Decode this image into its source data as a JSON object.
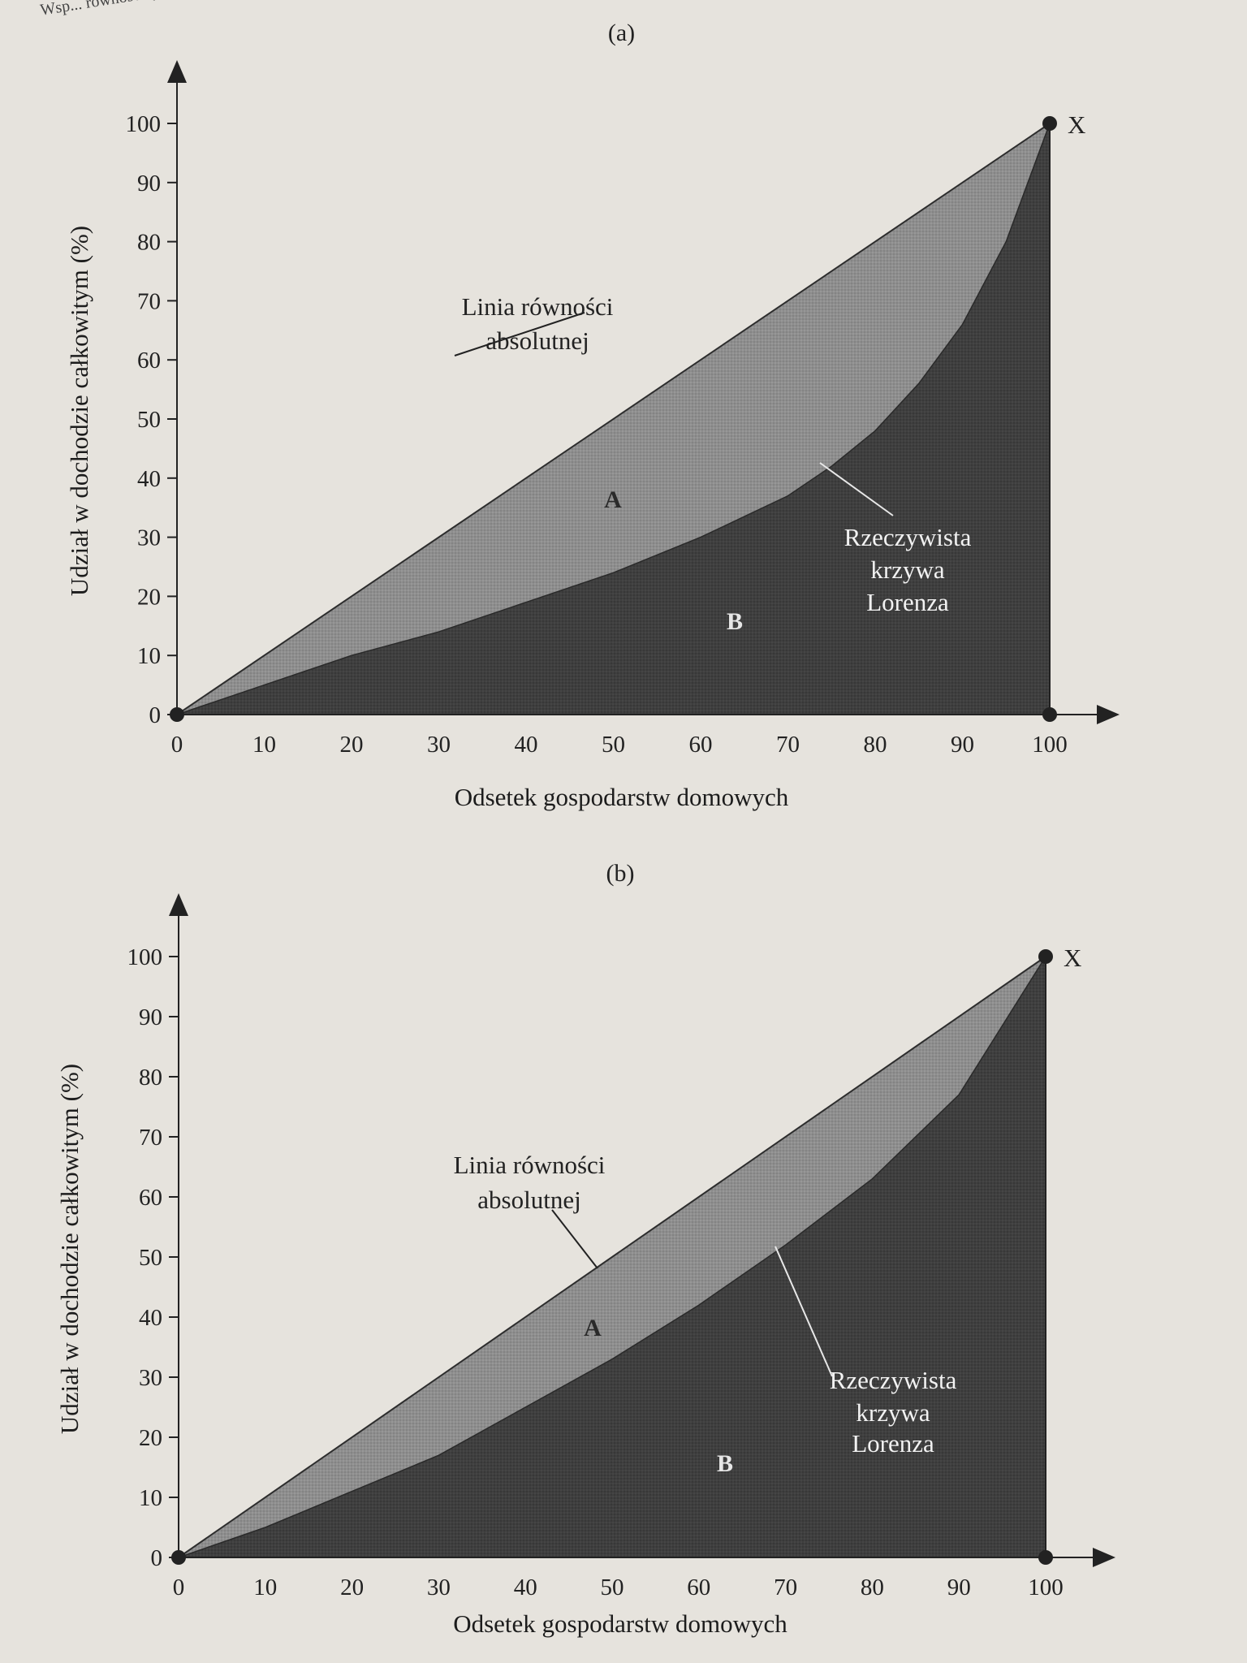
{
  "page_fragment": "Wsp... równości (sumy",
  "chart_data": [
    {
      "type": "area",
      "panel_label": "(a)",
      "xlabel": "Odsetek gospodarstw domowych",
      "ylabel": "Udział w dochodzie całkowitym (%)",
      "xlim": [
        0,
        100
      ],
      "ylim": [
        0,
        100
      ],
      "xticks": [
        0,
        10,
        20,
        30,
        40,
        50,
        60,
        70,
        80,
        90,
        100
      ],
      "yticks": [
        0,
        10,
        20,
        30,
        40,
        50,
        60,
        70,
        80,
        90,
        100
      ],
      "equality_line": {
        "label_line1": "Linia równości",
        "label_line2": "absolutnej",
        "x": [
          0,
          100
        ],
        "y": [
          0,
          100
        ]
      },
      "lorenz_curve": {
        "label_line1": "Rzeczywista",
        "label_line2": "krzywa",
        "label_line3": "Lorenza",
        "x": [
          0,
          10,
          20,
          30,
          40,
          50,
          60,
          70,
          75,
          80,
          85,
          90,
          95,
          100
        ],
        "y": [
          0,
          5,
          10,
          14,
          19,
          24,
          30,
          37,
          42,
          48,
          56,
          66,
          80,
          100
        ]
      },
      "regions": {
        "a": "A",
        "b": "B"
      },
      "point_label": "X",
      "grid": false,
      "legend": "none"
    },
    {
      "type": "area",
      "panel_label": "(b)",
      "xlabel": "Odsetek gospodarstw domowych",
      "ylabel": "Udział w dochodzie całkowitym (%)",
      "xlim": [
        0,
        100
      ],
      "ylim": [
        0,
        100
      ],
      "xticks": [
        0,
        10,
        20,
        30,
        40,
        50,
        60,
        70,
        80,
        90,
        100
      ],
      "yticks": [
        0,
        10,
        20,
        30,
        40,
        50,
        60,
        70,
        80,
        90,
        100
      ],
      "equality_line": {
        "label_line1": "Linia równości",
        "label_line2": "absolutnej",
        "x": [
          0,
          100
        ],
        "y": [
          0,
          100
        ]
      },
      "lorenz_curve": {
        "label_line1": "Rzeczywista",
        "label_line2": "krzywa",
        "label_line3": "Lorenza",
        "x": [
          0,
          10,
          20,
          30,
          40,
          50,
          60,
          70,
          80,
          90,
          100
        ],
        "y": [
          0,
          5,
          11,
          17,
          25,
          33,
          42,
          52,
          63,
          77,
          100
        ]
      },
      "regions": {
        "a": "A",
        "b": "B"
      },
      "point_label": "X",
      "grid": false,
      "legend": "none"
    }
  ]
}
